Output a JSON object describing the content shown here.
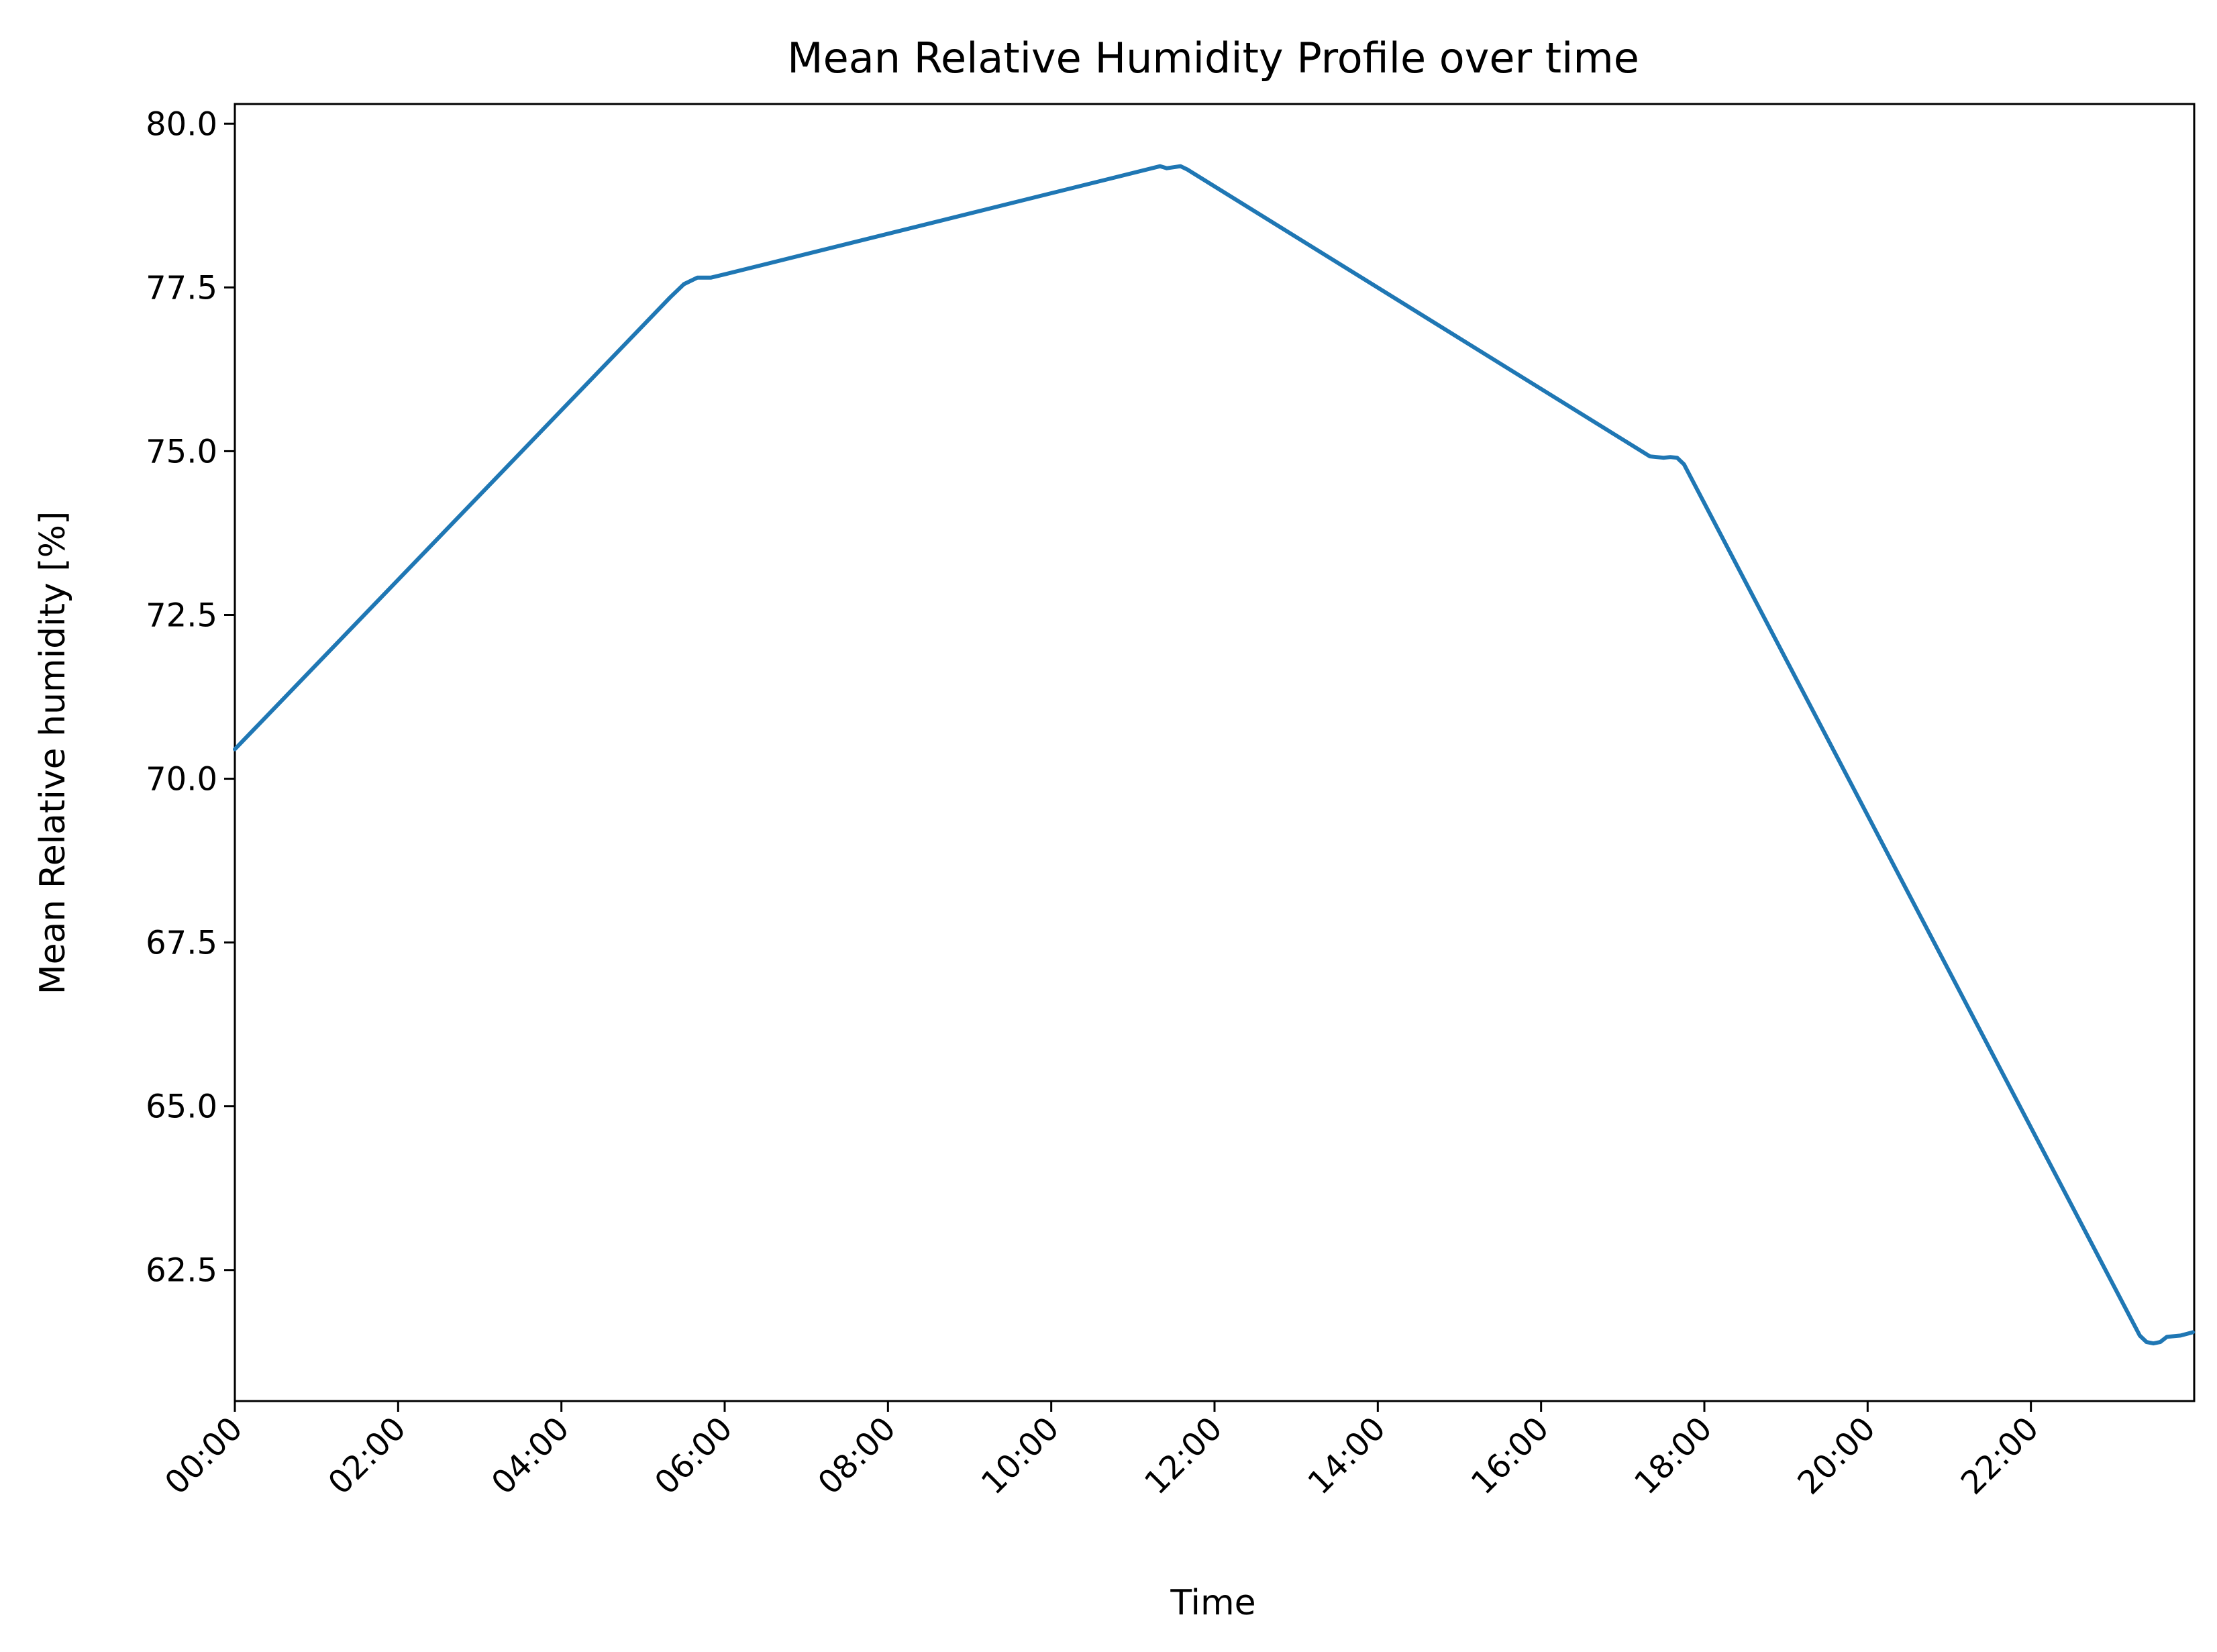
{
  "chart_data": {
    "type": "line",
    "title": "Mean Relative Humidity Profile over time",
    "xlabel": "Time",
    "ylabel": "Mean Relative humidity [%]",
    "xlim": [
      "00:00",
      "24:00"
    ],
    "ylim": [
      60.5,
      80.3
    ],
    "grid": false,
    "legend": "none",
    "x_ticks": [
      "00:00",
      "02:00",
      "04:00",
      "06:00",
      "08:00",
      "10:00",
      "12:00",
      "14:00",
      "16:00",
      "18:00",
      "20:00",
      "22:00"
    ],
    "y_ticks": [
      "62.5",
      "65.0",
      "67.5",
      "70.0",
      "72.5",
      "75.0",
      "77.5",
      "80.0"
    ],
    "series": [
      {
        "color": "#1f77b4",
        "x": [
          "00:00",
          "05:20",
          "05:30",
          "05:40",
          "05:50",
          "06:00",
          "11:20",
          "11:25",
          "11:35",
          "11:40",
          "17:20",
          "17:30",
          "17:35",
          "17:40",
          "17:45",
          "23:20",
          "23:25",
          "23:30",
          "23:35",
          "23:40",
          "23:50",
          "23:59"
        ],
        "values": [
          70.45,
          77.35,
          77.55,
          77.65,
          77.65,
          77.7,
          79.35,
          79.32,
          79.35,
          79.3,
          74.92,
          74.9,
          74.91,
          74.9,
          74.8,
          61.5,
          61.4,
          61.38,
          61.4,
          61.48,
          61.5,
          61.55
        ]
      }
    ]
  }
}
